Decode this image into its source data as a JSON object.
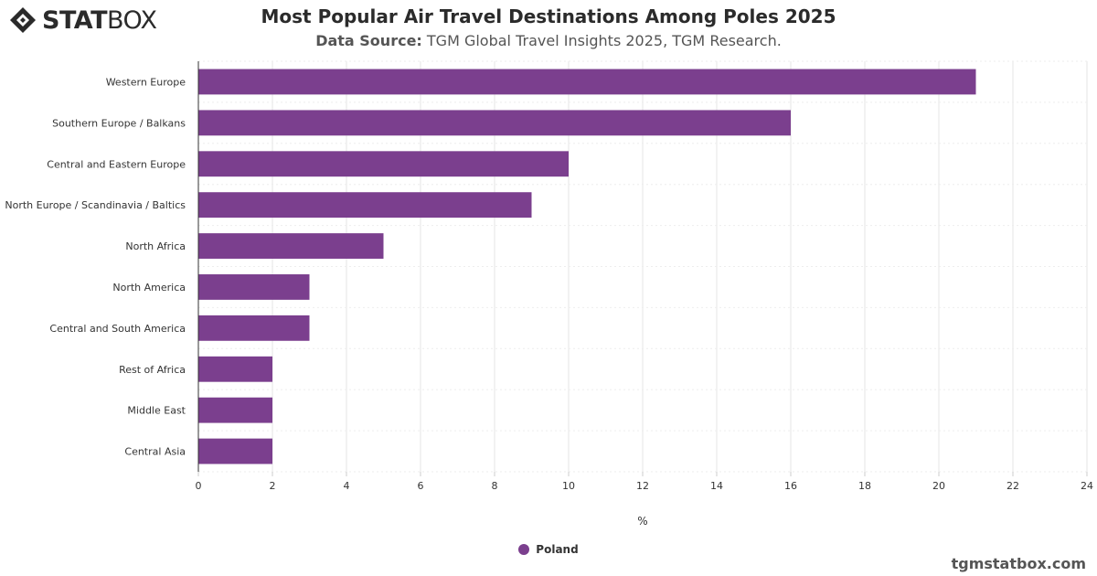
{
  "brand": {
    "logo_text_bold": "STAT",
    "logo_text_light": "BOX",
    "icon": "statbox-diamond-icon"
  },
  "header": {
    "title": "Most Popular Air Travel Destinations Among Poles 2025",
    "subtitle_label": "Data Source:",
    "subtitle_text": " TGM Global Travel Insights 2025, TGM Research."
  },
  "footer": {
    "site": "tgmstatbox.com"
  },
  "colors": {
    "bar": "#7B3F8E",
    "grid": "#e6e6e6",
    "axis": "#333333"
  },
  "chart_data": {
    "type": "bar",
    "orientation": "horizontal",
    "title": "Most Popular Air Travel Destinations Among Poles 2025",
    "xlabel": "%",
    "ylabel": "",
    "xlim": [
      0,
      24
    ],
    "x_ticks": [
      0,
      2,
      4,
      6,
      8,
      10,
      12,
      14,
      16,
      18,
      20,
      22,
      24
    ],
    "grid": true,
    "legend_position": "bottom-center",
    "categories": [
      "Western Europe",
      "Southern Europe / Balkans",
      "Central and Eastern Europe",
      "North Europe / Scandinavia / Baltics",
      "North Africa",
      "North America",
      "Central and South America",
      "Rest of Africa",
      "Middle East",
      "Central Asia"
    ],
    "series": [
      {
        "name": "Poland",
        "color": "#7B3F8E",
        "values": [
          21,
          16,
          10,
          9,
          5,
          3,
          3,
          2,
          2,
          2
        ]
      }
    ]
  }
}
